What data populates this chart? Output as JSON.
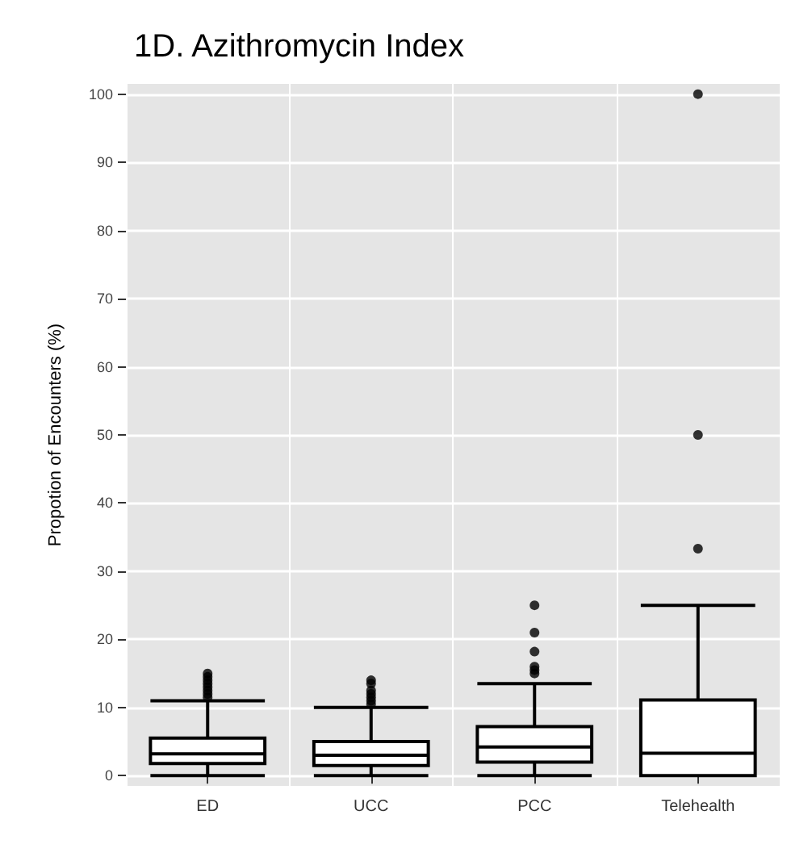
{
  "chart_data": {
    "type": "box",
    "title": "1D. Azithromycin Index",
    "ylabel": "Propotion of Encounters (%)",
    "categories": [
      "ED",
      "UCC",
      "PCC",
      "Telehealth"
    ],
    "boxes": [
      {
        "low": 0,
        "q1": 1.8,
        "median": 3.2,
        "q3": 5.5,
        "high": 11,
        "outliers": [
          11.5,
          12,
          12.5,
          13,
          13.5,
          14,
          14.5,
          15
        ]
      },
      {
        "low": 0,
        "q1": 1.5,
        "median": 3,
        "q3": 5,
        "high": 10,
        "outliers": [
          10.5,
          11,
          11.5,
          12,
          12.5,
          13.5,
          14
        ]
      },
      {
        "low": 0,
        "q1": 2,
        "median": 4.2,
        "q3": 7.2,
        "high": 13.5,
        "outliers": [
          15,
          15.5,
          16,
          18.2,
          21,
          25
        ]
      },
      {
        "low": 0,
        "q1": 0,
        "median": 3.3,
        "q3": 11.1,
        "high": 25,
        "outliers": [
          33.3,
          50,
          100
        ]
      }
    ],
    "color": "#000000",
    "ylim": [
      -1.5,
      101.5
    ],
    "yticks": [
      0,
      10,
      20,
      30,
      40,
      50,
      60,
      70,
      80,
      90,
      100
    ],
    "grid": true
  }
}
